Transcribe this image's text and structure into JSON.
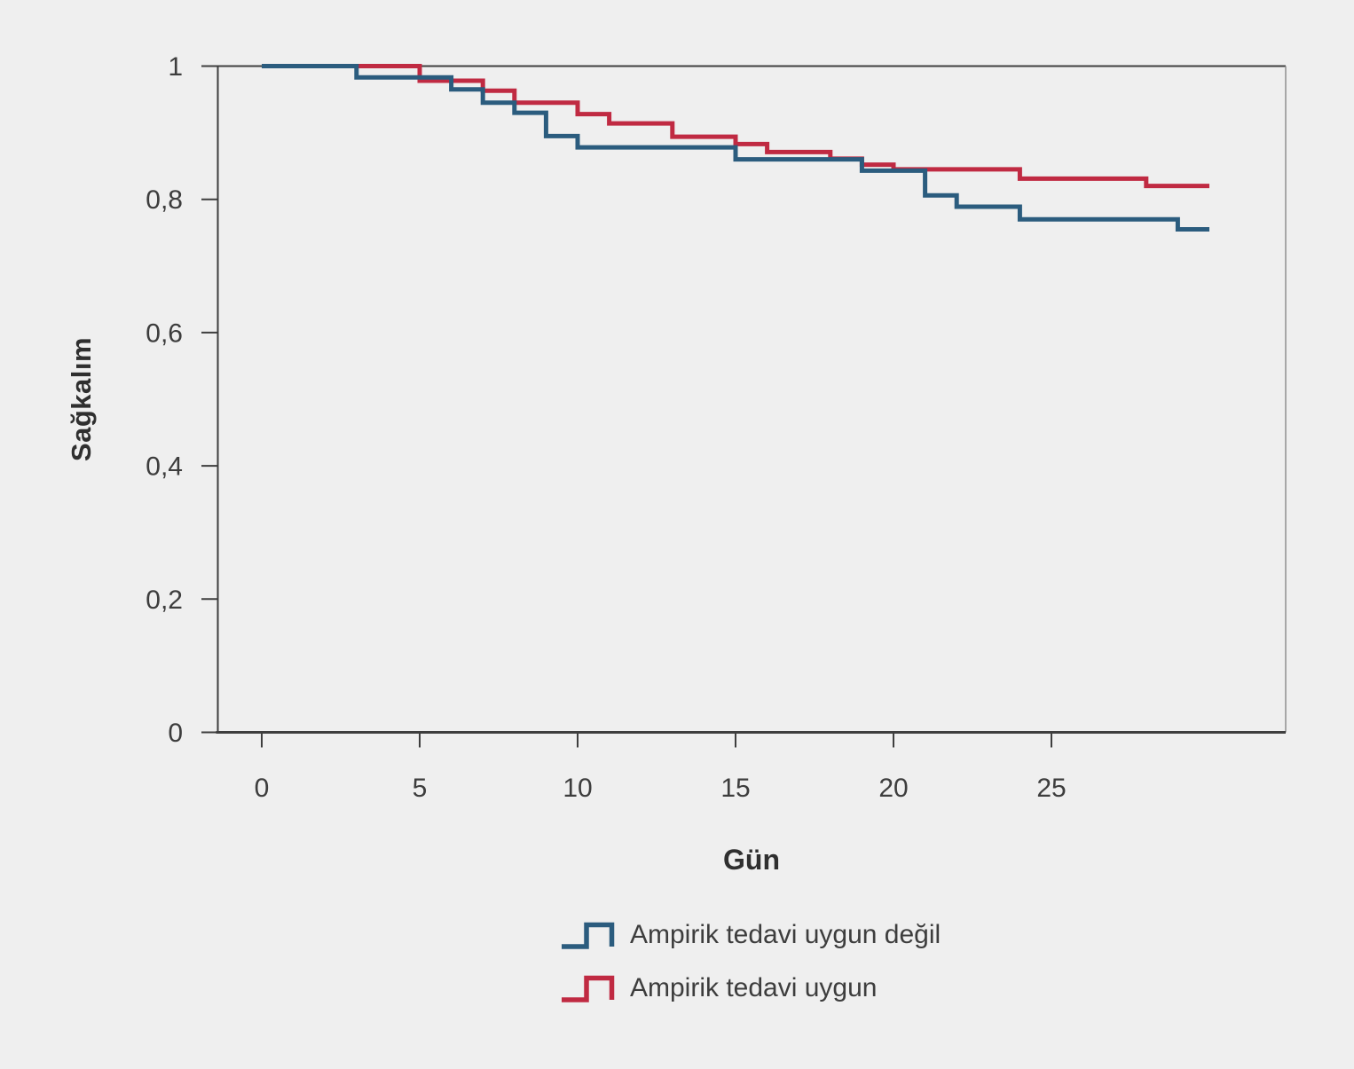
{
  "chart_data": {
    "type": "line",
    "step": true,
    "subtype": "kaplan-meier-survival",
    "title": "",
    "xlabel": "Gün",
    "ylabel": "Sağkalım",
    "xlim": [
      -1.4,
      32.4
    ],
    "ylim": [
      0,
      1
    ],
    "x_end": 30,
    "background_color": "#efefef",
    "axis_color": "#3e3e3e",
    "right_border_color": "#8f8f8f",
    "tick_label_color": "#3d3d3d",
    "grid": "off",
    "x_ticks": [
      {
        "value": 0,
        "label": "0"
      },
      {
        "value": 5,
        "label": "5"
      },
      {
        "value": 10,
        "label": "10"
      },
      {
        "value": 15,
        "label": "15"
      },
      {
        "value": 20,
        "label": "20"
      },
      {
        "value": 25,
        "label": "25"
      }
    ],
    "y_ticks": [
      {
        "value": 1,
        "label": "1"
      },
      {
        "value": 0.8,
        "label": "0,8"
      },
      {
        "value": 0.6,
        "label": "0,6"
      },
      {
        "value": 0.4,
        "label": "0,4"
      },
      {
        "value": 0.2,
        "label": "0,2"
      },
      {
        "value": 0,
        "label": "0"
      }
    ],
    "legend": {
      "position": "bottom-center"
    },
    "series": [
      {
        "name": "Ampirik tedavi uygun değil",
        "color": "#2B5C7E",
        "steps": [
          [
            0,
            1.0
          ],
          [
            3,
            0.983
          ],
          [
            6,
            0.965
          ],
          [
            7,
            0.945
          ],
          [
            8,
            0.93
          ],
          [
            9,
            0.895
          ],
          [
            10,
            0.878
          ],
          [
            15,
            0.86
          ],
          [
            19,
            0.843
          ],
          [
            21,
            0.806
          ],
          [
            22,
            0.789
          ],
          [
            24,
            0.77
          ],
          [
            29,
            0.755
          ]
        ]
      },
      {
        "name": "Ampirik tedavi uygun",
        "color": "#C02A42",
        "steps": [
          [
            0,
            1.0
          ],
          [
            5,
            0.978
          ],
          [
            7,
            0.963
          ],
          [
            8,
            0.945
          ],
          [
            10,
            0.928
          ],
          [
            11,
            0.914
          ],
          [
            13,
            0.894
          ],
          [
            15,
            0.883
          ],
          [
            16,
            0.871
          ],
          [
            18,
            0.861
          ],
          [
            19,
            0.852
          ],
          [
            20,
            0.845
          ],
          [
            24,
            0.831
          ],
          [
            28,
            0.82
          ]
        ]
      }
    ]
  }
}
